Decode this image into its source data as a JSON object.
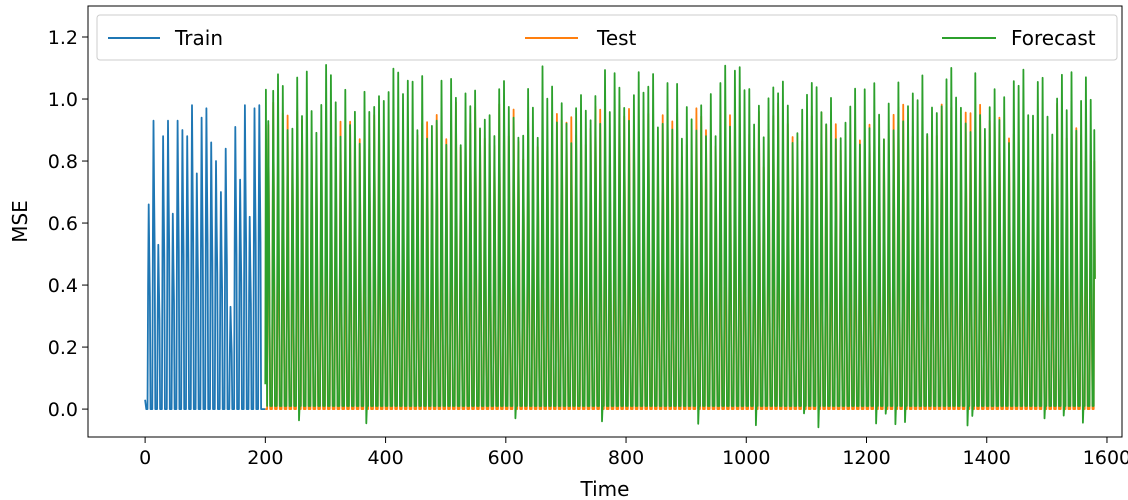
{
  "chart_data": {
    "type": "line",
    "title": "",
    "xlabel": "Time",
    "ylabel": "MSE",
    "xlim": [
      -95,
      1625
    ],
    "ylim": [
      -0.09,
      1.3
    ],
    "xticks": [
      0,
      200,
      400,
      600,
      800,
      1000,
      1200,
      1400,
      1600
    ],
    "yticks": [
      0.0,
      0.2,
      0.4,
      0.6,
      0.8,
      1.0,
      1.2
    ],
    "xtick_labels": [
      "0",
      "200",
      "400",
      "600",
      "800",
      "1000",
      "1200",
      "1400",
      "1600"
    ],
    "ytick_labels": [
      "0.0",
      "0.2",
      "0.4",
      "0.6",
      "0.8",
      "1.0",
      "1.2"
    ],
    "grid": false,
    "legend_placement": "top, spanning full width",
    "series": [
      {
        "name": "Train",
        "color": "#1f77b4",
        "x_range": [
          0,
          200
        ],
        "period": 8,
        "baseline": 0.0,
        "peaks": [
          0.66,
          0.93,
          0.53,
          0.88,
          0.93,
          0.63,
          0.93,
          0.9,
          0.88,
          0.98,
          0.76,
          0.94,
          0.97,
          0.86,
          0.8,
          0.7,
          0.84,
          0.33,
          0.91,
          0.74,
          0.98,
          0.62,
          0.97,
          0.98,
          0.9
        ]
      },
      {
        "name": "Test",
        "color": "#ff7f0e",
        "x_range": [
          200,
          1580
        ],
        "period": 8,
        "baseline": 0.0,
        "peak_range": [
          0.78,
          0.99
        ]
      },
      {
        "name": "Forecast",
        "color": "#2ca02c",
        "x_range": [
          200,
          1580
        ],
        "period": 8,
        "baseline": 0.01,
        "peak_range": [
          0.85,
          1.11
        ],
        "max": 1.11,
        "min": -0.06
      }
    ]
  }
}
